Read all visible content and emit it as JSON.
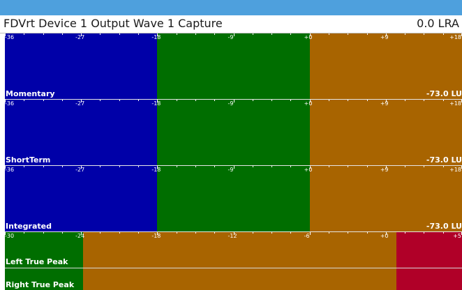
{
  "window": {
    "title": "FDVrt Device 1 Output Wave 1 Capture",
    "lra": "0.0 LRA"
  },
  "colors": {
    "low": "#0000a8",
    "mid": "#006e00",
    "high": "#a86400",
    "peak": "#b00028"
  },
  "loudness_scale": {
    "min": -36,
    "max": 18,
    "ticks": [
      "-36",
      "-27",
      "-18",
      "-9",
      "+0",
      "+9",
      "+18"
    ],
    "segments": [
      {
        "from": -36,
        "to": -18,
        "color": "low"
      },
      {
        "from": -18,
        "to": 0,
        "color": "mid"
      },
      {
        "from": 0,
        "to": 18,
        "color": "high"
      }
    ]
  },
  "meters": [
    {
      "name": "momentary",
      "label": "Momentary",
      "value": "-73.0 LU"
    },
    {
      "name": "shortterm",
      "label": "ShortTerm",
      "value": "-73.0 LU"
    },
    {
      "name": "integrated",
      "label": "Integrated",
      "value": "-73.0 LU"
    }
  ],
  "true_peak": {
    "scale": {
      "min": -30,
      "max": 5,
      "ticks": [
        "-30",
        "-24",
        "-18",
        "-12",
        "-6",
        "+0",
        "+5"
      ],
      "segments": [
        {
          "from": -30,
          "to": -24,
          "color": "mid"
        },
        {
          "from": -24,
          "to": 0,
          "color": "high"
        },
        {
          "from": 0,
          "to": 5,
          "color": "peak"
        }
      ]
    },
    "channels": [
      {
        "name": "left",
        "label": "Left True Peak"
      },
      {
        "name": "right",
        "label": "Right True Peak"
      }
    ]
  }
}
